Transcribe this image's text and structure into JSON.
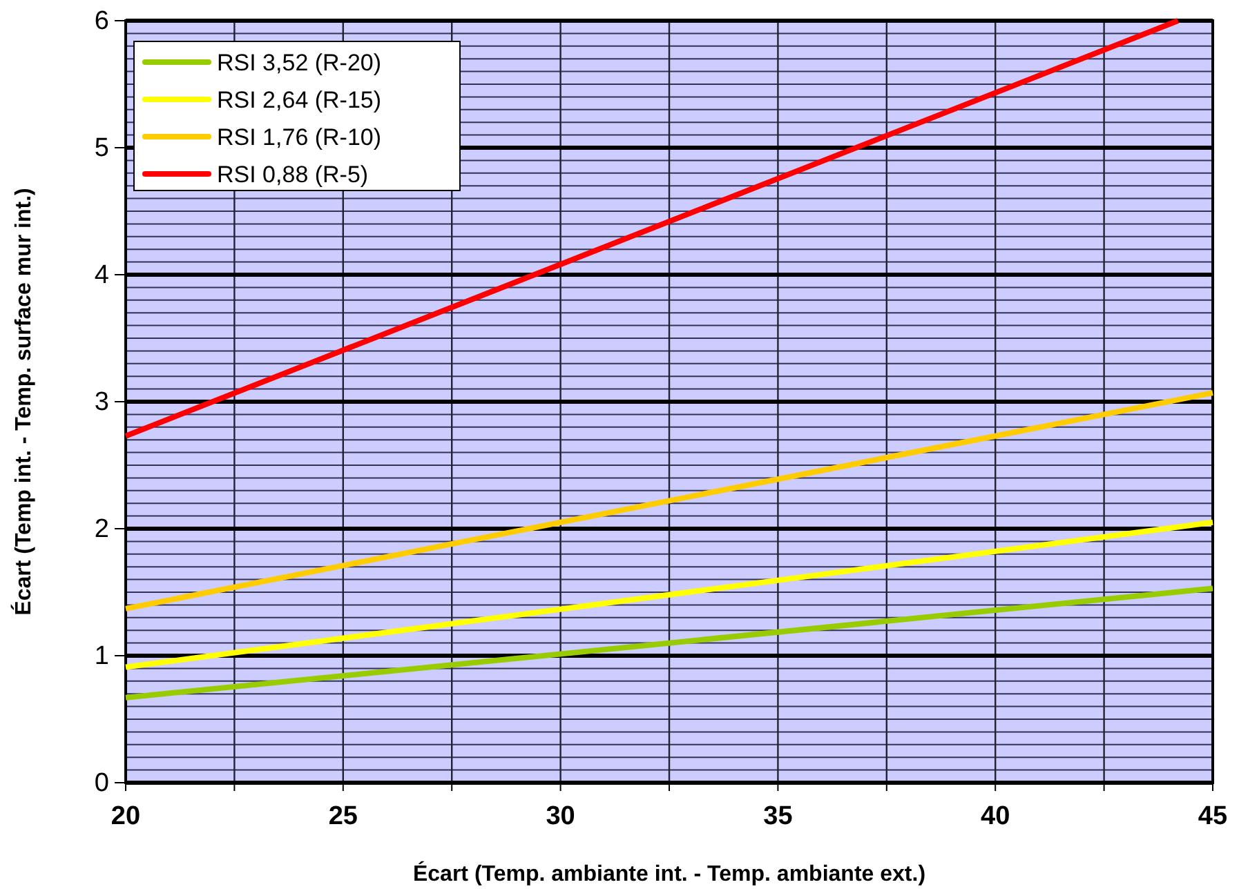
{
  "chart_data": {
    "type": "line",
    "xlabel": "Écart  (Temp. ambiante int. - Temp. ambiante ext.)",
    "ylabel": "Écart (Temp int. - Temp. surface mur int.)",
    "xlim": [
      20,
      45
    ],
    "ylim": [
      0,
      6
    ],
    "xticks": [
      20,
      {
        "value": 22.5,
        "label": null
      },
      25,
      {
        "value": 27.5,
        "label": null
      },
      30,
      {
        "value": 32.5,
        "label": null
      },
      35,
      {
        "value": 37.5,
        "label": null
      },
      40,
      {
        "value": 42.5,
        "label": null
      },
      45
    ],
    "yticks": [
      0,
      1,
      2,
      3,
      4,
      5,
      6
    ],
    "grid": true,
    "legend": "top left",
    "line_style": "solid",
    "marker": "none",
    "series": [
      {
        "name": "RSI 3,52 (R-20)",
        "color": "#99cc00",
        "x": [
          20,
          45
        ],
        "values": [
          0.67,
          1.53
        ]
      },
      {
        "name": "RSI 2,64 (R-15)",
        "color": "#ffff00",
        "x": [
          20,
          45
        ],
        "values": [
          0.91,
          2.05
        ]
      },
      {
        "name": "RSI 1,76 (R-10)",
        "color": "#ffcc00",
        "x": [
          20,
          45
        ],
        "values": [
          1.37,
          3.07
        ]
      },
      {
        "name": "RSI 0,88 (R-5)",
        "color": "#ff0000",
        "x": [
          20,
          44.2
        ],
        "values": [
          2.73,
          6.0
        ]
      }
    ]
  }
}
